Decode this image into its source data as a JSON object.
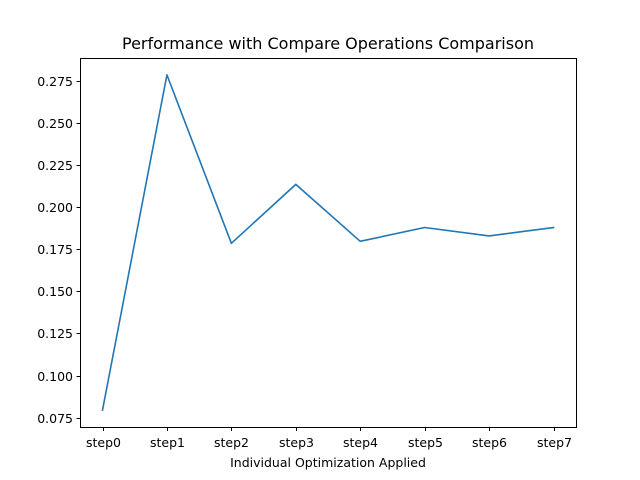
{
  "chart_data": {
    "type": "line",
    "title": "Performance with Compare Operations Comparison",
    "xlabel": "Individual Optimization Applied",
    "ylabel": "",
    "categories": [
      "step0",
      "step1",
      "step2",
      "step3",
      "step4",
      "step5",
      "step6",
      "step7"
    ],
    "series": [
      {
        "values": [
          0.0795,
          0.2785,
          0.1785,
          0.2135,
          0.1797,
          0.1879,
          0.1829,
          0.1879
        ],
        "color": "#1f77b4"
      }
    ],
    "yticks": [
      "0.075",
      "0.100",
      "0.125",
      "0.150",
      "0.175",
      "0.200",
      "0.225",
      "0.250",
      "0.275"
    ],
    "ylim": [
      0.0695,
      0.2885
    ],
    "grid": false,
    "legend": "none"
  }
}
